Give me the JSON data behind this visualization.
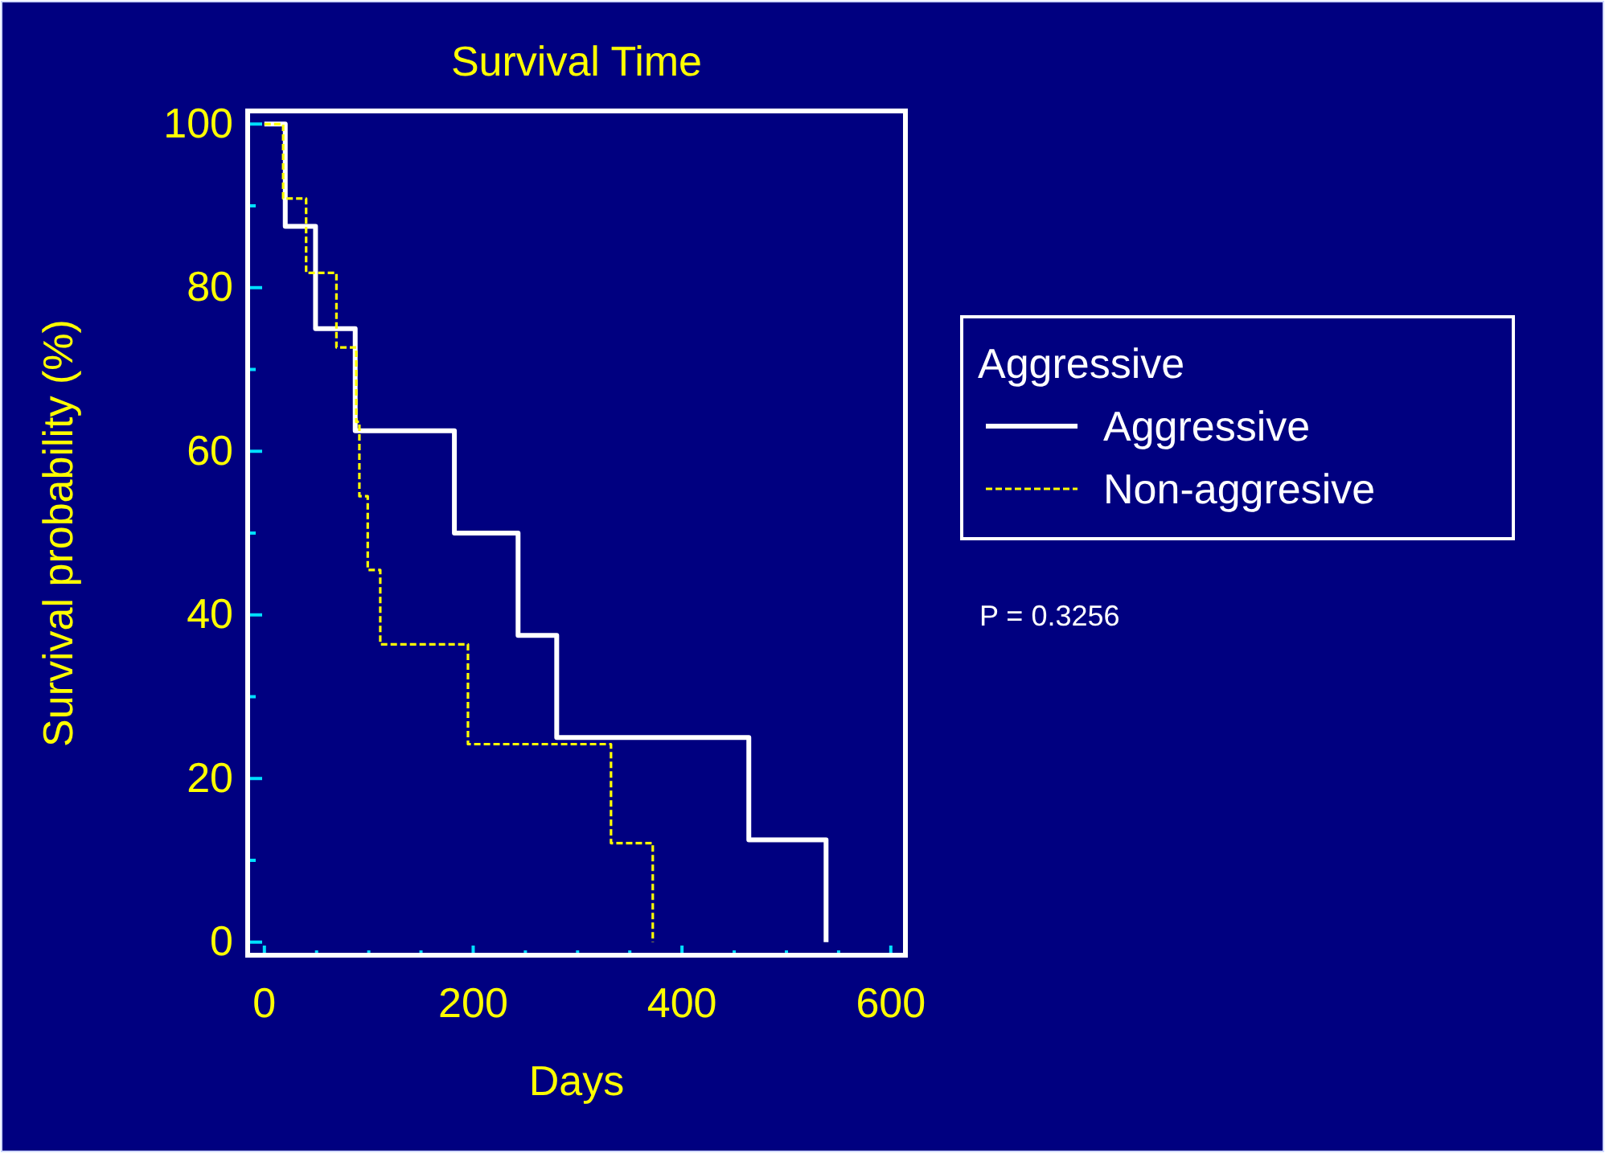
{
  "chart_data": {
    "type": "step",
    "title": "Survival Time",
    "xlabel": "Days",
    "ylabel": "Survival probability (%)",
    "legend_title": "Aggressive",
    "legend": "right",
    "grid": false,
    "marker": "none",
    "xlim": [
      -16,
      614
    ],
    "ylim": [
      -1.6,
      101.6
    ],
    "xticks": [
      0,
      {
        "value": 50,
        "label": null
      },
      {
        "value": 100,
        "label": null
      },
      {
        "value": 150,
        "label": null
      },
      200,
      {
        "value": 250,
        "label": null
      },
      {
        "value": 300,
        "label": null
      },
      {
        "value": 350,
        "label": null
      },
      400,
      {
        "value": 450,
        "label": null
      },
      {
        "value": 500,
        "label": null
      },
      {
        "value": 550,
        "label": null
      },
      600
    ],
    "yticks": [
      0,
      {
        "value": 10,
        "label": null
      },
      20,
      {
        "value": 30,
        "label": null
      },
      40,
      {
        "value": 50,
        "label": null
      },
      60,
      {
        "value": 70,
        "label": null
      },
      80,
      {
        "value": 90,
        "label": null
      },
      100
    ],
    "annotations": [
      "P = 0.3256"
    ],
    "series": [
      {
        "name": "Aggressive",
        "color": "#ffffff",
        "line_style": "solid",
        "x": [
          0,
          20,
          49,
          87,
          182,
          243,
          280,
          464,
          538
        ],
        "values": [
          100,
          87.5,
          75,
          62.5,
          50,
          37.5,
          25,
          12.5,
          0
        ]
      },
      {
        "name": "Non-aggresive",
        "color": "#ffff00",
        "line_style": "dashed",
        "x": [
          0,
          18,
          40,
          69,
          88,
          91,
          99,
          111,
          195,
          332,
          372
        ],
        "values": [
          100,
          90.9,
          81.8,
          72.7,
          63.6,
          54.5,
          45.5,
          36.4,
          24.2,
          12.1,
          0
        ]
      }
    ]
  }
}
